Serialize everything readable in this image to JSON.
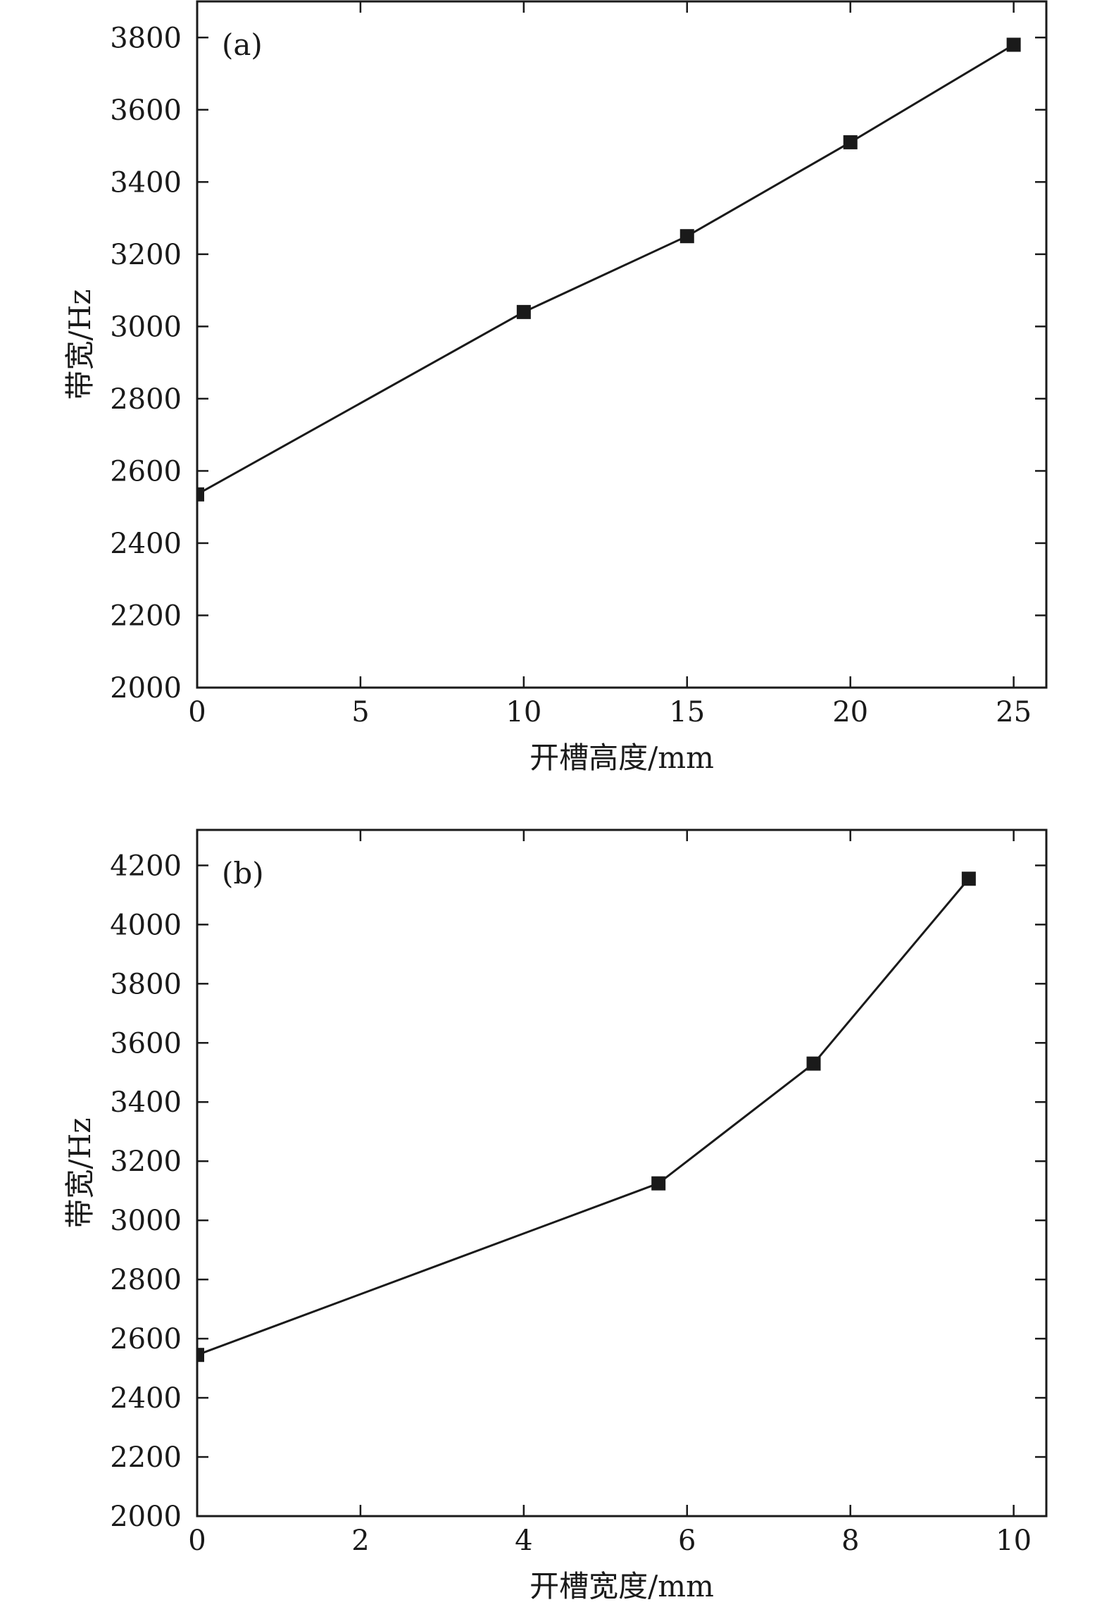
{
  "chart_data": [
    {
      "type": "line",
      "panel_label": "(a)",
      "xlabel": "开槽高度/mm",
      "ylabel": "带宽/Hz",
      "xlim": [
        0,
        26
      ],
      "ylim": [
        2000,
        3900
      ],
      "xticks": [
        0,
        5,
        10,
        15,
        20,
        25
      ],
      "yticks": [
        2000,
        2200,
        2400,
        2600,
        2800,
        3000,
        3200,
        3400,
        3600,
        3800
      ],
      "grid": false,
      "series": [
        {
          "x": [
            0,
            10,
            15,
            20,
            25
          ],
          "y": [
            2535,
            3040,
            3250,
            3510,
            3780
          ]
        }
      ]
    },
    {
      "type": "line",
      "panel_label": "(b)",
      "xlabel": "开槽宽度/mm",
      "ylabel": "带宽/Hz",
      "xlim": [
        0,
        10.4
      ],
      "ylim": [
        2000,
        4320
      ],
      "xticks": [
        0,
        2,
        4,
        6,
        8,
        10
      ],
      "yticks": [
        2000,
        2200,
        2400,
        2600,
        2800,
        3000,
        3200,
        3400,
        3600,
        3800,
        4000,
        4200
      ],
      "grid": false,
      "series": [
        {
          "x": [
            0,
            5.65,
            7.55,
            9.45
          ],
          "y": [
            2545,
            3125,
            3530,
            4155
          ]
        }
      ]
    }
  ]
}
